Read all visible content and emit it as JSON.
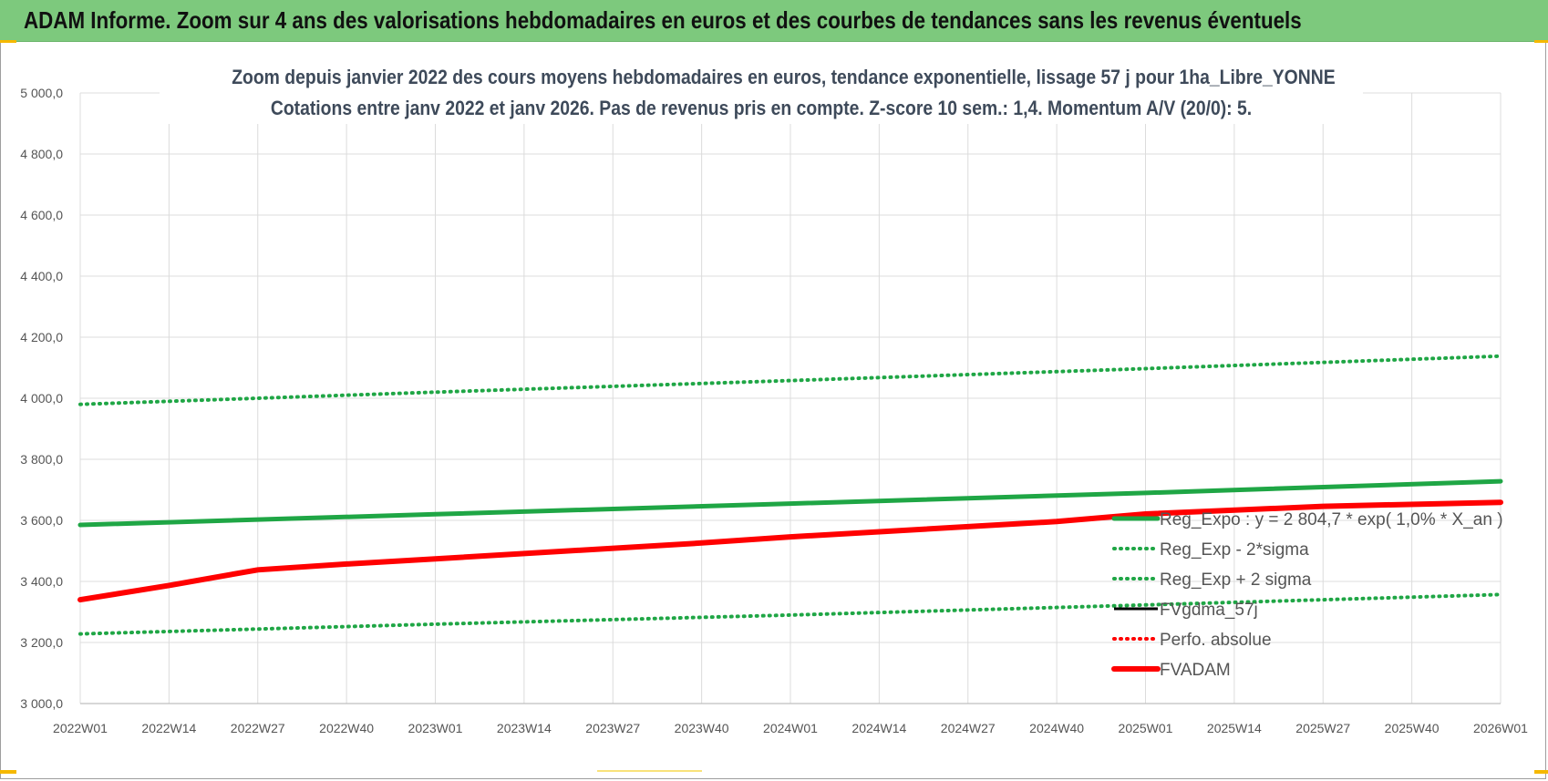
{
  "banner": {
    "title": "ADAM Informe. Zoom sur 4 ans des valorisations hebdomadaires en euros et des courbes de tendances sans les revenus éventuels"
  },
  "colors": {
    "banner_bg": "#7dc97d",
    "green": "#1fa645",
    "red": "#ff0000",
    "black": "#000000",
    "grid": "#dcdcdc"
  },
  "chart_data": {
    "type": "line",
    "title_line1": "Zoom depuis janvier 2022 des cours moyens hebdomadaires en euros, tendance exponentielle, lissage 57 j pour 1ha_Libre_YONNE",
    "title_line2": "Cotations entre janv 2022 et janv 2026. Pas de revenus pris en compte. Z-score 10 sem.: 1,4. Momentum A/V (20/0): 5.",
    "ylim": [
      3000,
      5000
    ],
    "y_ticks": [
      "3 000,0",
      "3 200,0",
      "3 400,0",
      "3 600,0",
      "3 800,0",
      "4 000,0",
      "4 200,0",
      "4 400,0",
      "4 600,0",
      "4 800,0",
      "5 000,0"
    ],
    "x_ticks": [
      "2022W01",
      "2022W14",
      "2022W27",
      "2022W40",
      "2023W01",
      "2023W14",
      "2023W27",
      "2023W40",
      "2024W01",
      "2024W14",
      "2024W27",
      "2024W40",
      "2025W01",
      "2025W14",
      "2025W27",
      "2025W40",
      "2026W01"
    ],
    "grid": true,
    "legend_position": "right",
    "series": [
      {
        "name": "Reg_Expo : y = 2 804,7 * exp( 1,0% *  X_an )",
        "style": "solid",
        "color": "#1fa645",
        "x": [
          "2022W01",
          "2023W01",
          "2024W01",
          "2025W01",
          "2026W01"
        ],
        "y": [
          3585,
          3620,
          3655,
          3690,
          3728
        ]
      },
      {
        "name": "Reg_Exp - 2*sigma",
        "style": "dotted",
        "color": "#1fa645",
        "x": [
          "2022W01",
          "2023W01",
          "2024W01",
          "2025W01",
          "2026W01"
        ],
        "y": [
          3228,
          3260,
          3290,
          3323,
          3357
        ]
      },
      {
        "name": "Reg_Exp + 2 sigma",
        "style": "dotted",
        "color": "#1fa645",
        "x": [
          "2022W01",
          "2023W01",
          "2024W01",
          "2025W01",
          "2026W01"
        ],
        "y": [
          3980,
          4020,
          4058,
          4097,
          4138
        ]
      },
      {
        "name": "FVgdma_57j",
        "style": "solid",
        "color": "#000000",
        "x": [
          "2022W01",
          "2022W14",
          "2022W27",
          "2022W40",
          "2023W01",
          "2023W40",
          "2024W01",
          "2024W40",
          "2025W01",
          "2025W27",
          "2026W01"
        ],
        "y": [
          3340,
          3385,
          3435,
          3455,
          3473,
          3525,
          3545,
          3595,
          3620,
          3645,
          3658
        ]
      },
      {
        "name": "Perfo. absolue",
        "style": "dotted",
        "color": "#ff0000",
        "x": [],
        "y": []
      },
      {
        "name": "FVADAM",
        "style": "solid",
        "color": "#ff0000",
        "x": [
          "2022W01",
          "2022W14",
          "2022W27",
          "2022W40",
          "2023W01",
          "2023W40",
          "2024W01",
          "2024W40",
          "2025W01",
          "2025W27",
          "2026W01"
        ],
        "y": [
          3340,
          3387,
          3438,
          3457,
          3474,
          3526,
          3546,
          3596,
          3621,
          3646,
          3659
        ]
      }
    ]
  }
}
